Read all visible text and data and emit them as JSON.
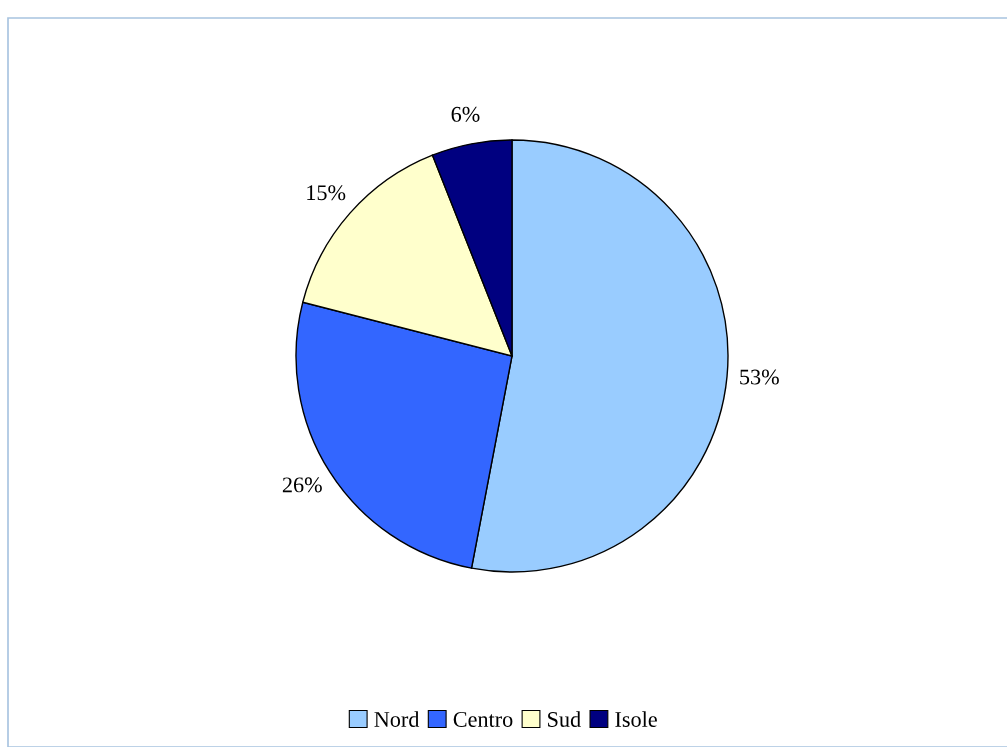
{
  "chart_data": {
    "type": "pie",
    "categories": [
      "Nord",
      "Centro",
      "Sud",
      "Isole"
    ],
    "values": [
      53,
      26,
      15,
      6
    ],
    "colors": [
      "#99ccff",
      "#3366ff",
      "#ffffcc",
      "#000080"
    ],
    "value_labels": [
      "53%",
      "26%",
      "15%",
      "6%"
    ],
    "legend": "bottom"
  }
}
